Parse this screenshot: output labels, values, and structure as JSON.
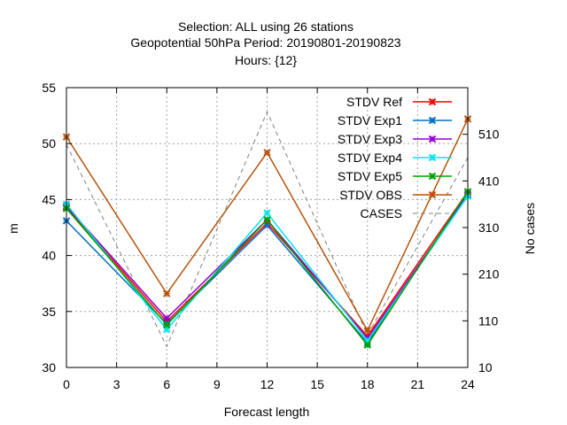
{
  "chart_data": {
    "type": "line",
    "title_lines": [
      "Selection: ALL using    26 stations",
      "Geopotential 50hPa   Period: 20190801-20190823",
      "Hours: {12}"
    ],
    "xlabel": "Forecast length",
    "ylabel": "m",
    "y2label": "No cases",
    "xlim": [
      0,
      24
    ],
    "ylim": [
      30,
      55
    ],
    "y2lim": [
      10,
      610
    ],
    "xticks": [
      0,
      3,
      6,
      9,
      12,
      15,
      18,
      21,
      24
    ],
    "yticks": [
      30,
      35,
      40,
      45,
      50,
      55
    ],
    "y2ticks": [
      10,
      110,
      210,
      310,
      410,
      510
    ],
    "grid": true,
    "legend_position": "top-right",
    "x": [
      0,
      6,
      12,
      18,
      24
    ],
    "series": [
      {
        "name": "STDV Ref",
        "color": "#ff0000",
        "axis": "left",
        "marker": "x",
        "values": [
          44.3,
          34.1,
          42.9,
          32.8,
          45.7
        ]
      },
      {
        "name": "STDV Exp1",
        "color": "#0070c0",
        "axis": "left",
        "marker": "x",
        "values": [
          43.1,
          33.9,
          42.7,
          32.2,
          45.5
        ]
      },
      {
        "name": "STDV Exp3",
        "color": "#9400d3",
        "axis": "left",
        "marker": "x",
        "values": [
          44.4,
          34.4,
          43.2,
          32.6,
          45.4
        ]
      },
      {
        "name": "STDV Exp4",
        "color": "#00e5ee",
        "axis": "left",
        "marker": "x",
        "values": [
          44.6,
          33.4,
          43.8,
          32.4,
          45.3
        ]
      },
      {
        "name": "STDV Exp5",
        "color": "#00a000",
        "axis": "left",
        "marker": "x",
        "values": [
          44.2,
          33.8,
          43.2,
          32.0,
          45.7
        ]
      },
      {
        "name": "STDV OBS",
        "color": "#b8520a",
        "axis": "left",
        "marker": "x",
        "values": [
          50.6,
          36.6,
          49.2,
          33.3,
          52.2
        ]
      },
      {
        "name": "CASES",
        "color": "#808080",
        "axis": "right",
        "marker": "none",
        "dashed": true,
        "values": [
          488,
          55,
          558,
          80,
          460
        ]
      }
    ]
  }
}
